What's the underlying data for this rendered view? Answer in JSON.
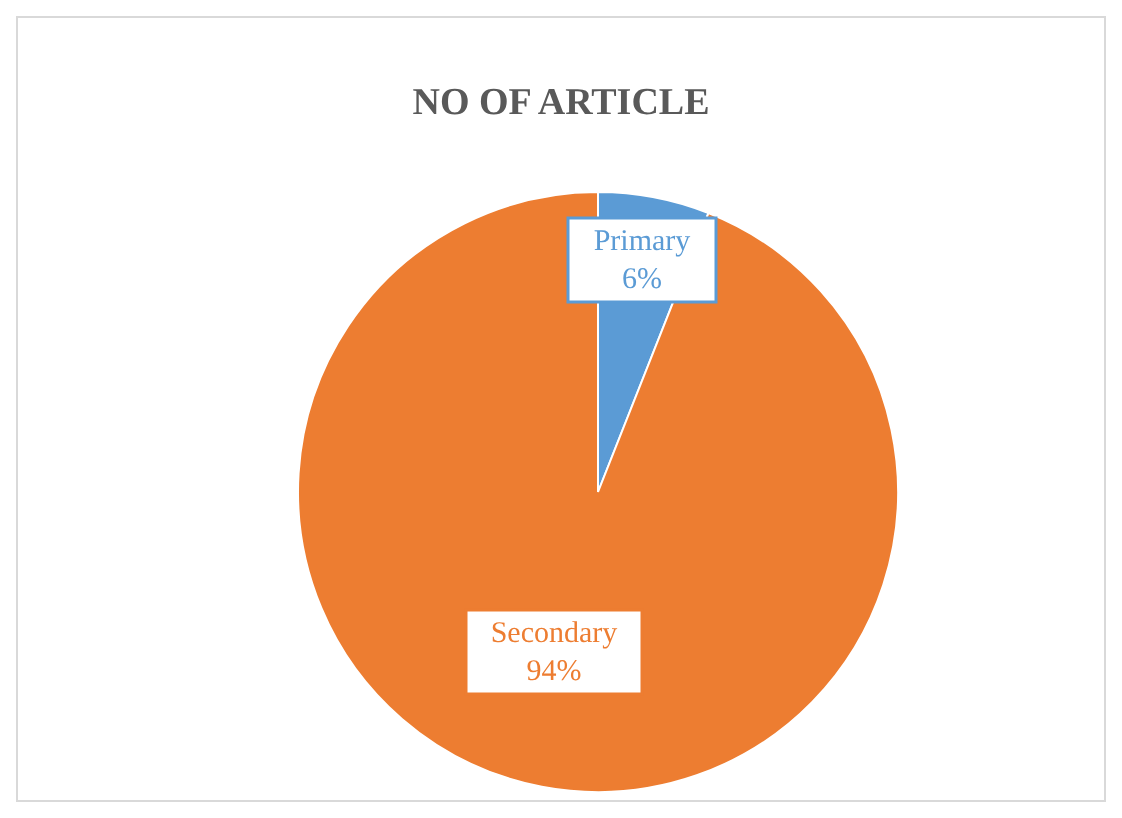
{
  "chart_data": {
    "type": "pie",
    "title": "NO OF ARTICLE",
    "categories": [
      "Primary",
      "Secondary"
    ],
    "values": [
      6,
      94
    ],
    "colors": [
      "#5b9bd5",
      "#ed7d31"
    ],
    "value_labels": [
      "6%",
      "94%"
    ]
  }
}
